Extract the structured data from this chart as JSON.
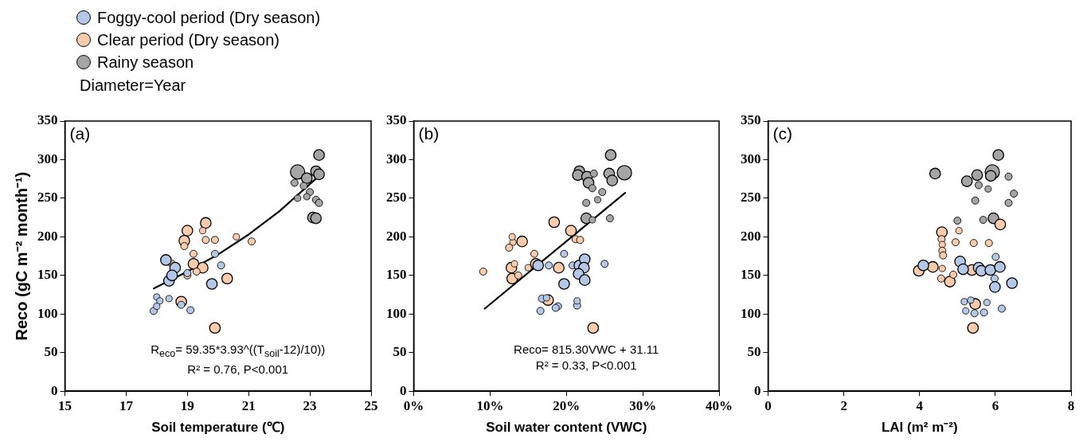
{
  "chart_data": [
    {
      "type": "bubble",
      "ylabel": "Reco (gC m⁻² month⁻¹)",
      "xlabel": "Soil temperature (℃)",
      "legend": "top left",
      "legend_title": "Diameter=Year",
      "xlim": [
        15,
        25
      ],
      "xticks": [
        15,
        17,
        19,
        21,
        23,
        25
      ],
      "ylim": [
        0,
        350
      ],
      "yticks": [
        0,
        50,
        100,
        150,
        200,
        250,
        300,
        350
      ],
      "annotations": [
        "(a)",
        "R$_{eco}$= 59.35*3.93^((T$_{soil}$-12)/10))",
        "R² = 0.76, P<0.001"
      ],
      "series": [
        {
          "name": "Foggy-cool period (Dry season)",
          "color": "#b4c7e7",
          "x": [
            18.3,
            18.6,
            18.4,
            18.5,
            19.0,
            19.9,
            20.1,
            19.8,
            18.0,
            18.1,
            18.4,
            18.8,
            19.1,
            17.9,
            18.0
          ],
          "values": [
            170,
            160,
            143,
            150,
            153,
            178,
            163,
            139,
            122,
            117,
            120,
            112,
            105,
            104,
            110
          ],
          "sizes": [
            0.55,
            0.55,
            0.55,
            0.55,
            0.25,
            0.25,
            0.25,
            0.55,
            0.2,
            0.2,
            0.2,
            0.25,
            0.25,
            0.25,
            0.2
          ]
        },
        {
          "name": "Clear period (Dry season)",
          "color": "#f8cbad",
          "x": [
            19.6,
            19.0,
            19.5,
            18.9,
            19.6,
            19.9,
            20.6,
            21.1,
            18.9,
            19.2,
            19.2,
            19.5,
            19.3,
            18.5,
            20.3,
            18.8,
            19.9,
            19.0
          ],
          "values": [
            218,
            208,
            208,
            195,
            196,
            196,
            200,
            194,
            188,
            178,
            165,
            160,
            155,
            165,
            146,
            116,
            82,
            150
          ],
          "sizes": [
            0.55,
            0.55,
            0.2,
            0.55,
            0.25,
            0.25,
            0.2,
            0.25,
            0.25,
            0.25,
            0.55,
            0.55,
            0.25,
            0.25,
            0.55,
            0.55,
            0.55,
            0.25
          ]
        },
        {
          "name": "Rainy season",
          "color": "#a5a5a5",
          "x": [
            23.3,
            22.6,
            23.2,
            23.3,
            22.9,
            22.5,
            22.8,
            23.0,
            22.9,
            23.2,
            23.3,
            23.1,
            23.2,
            22.6
          ],
          "values": [
            306,
            284,
            285,
            281,
            276,
            270,
            266,
            258,
            252,
            248,
            244,
            225,
            224,
            250
          ],
          "sizes": [
            0.55,
            1,
            0.55,
            0.55,
            0.55,
            0.25,
            0.25,
            0.25,
            0.2,
            0.25,
            0.25,
            0.55,
            0.55,
            0.2
          ]
        },
        {
          "type": "line",
          "color": "#000000",
          "x": [
            17.9,
            19,
            20,
            21,
            22,
            23.3
          ],
          "values": [
            133,
            155,
            177,
            203,
            233,
            279
          ]
        }
      ]
    },
    {
      "type": "bubble",
      "xlabel": "Soil water content (VWC)",
      "xlim": [
        0,
        40
      ],
      "xticks": [
        {
          "value": 0,
          "label": "0%"
        },
        {
          "value": 10,
          "label": "10%"
        },
        {
          "value": 20,
          "label": "20%"
        },
        {
          "value": 30,
          "label": "30%"
        },
        {
          "value": 40,
          "label": "40%"
        }
      ],
      "ylim": [
        0,
        350
      ],
      "yticks": [
        0,
        50,
        100,
        150,
        200,
        250,
        300,
        350
      ],
      "annotations": [
        "(b)",
        "Reco= 815.30VWC + 31.11",
        "R² = 0.33, P<0.001"
      ],
      "series": [
        {
          "color": "#b4c7e7",
          "x": [
            16.3,
            17.7,
            19.7,
            20.8,
            21.7,
            22.4,
            25.0,
            22.3,
            21.6,
            22.4,
            19.7,
            16.8,
            17.4,
            18.9,
            16.6,
            18.6,
            21.4,
            21.4
          ],
          "values": [
            163,
            163,
            178,
            163,
            163,
            171,
            165,
            160,
            152,
            144,
            139,
            120,
            121,
            110,
            104,
            108,
            111,
            117
          ],
          "sizes": [
            0.55,
            0.25,
            0.25,
            0.25,
            0.55,
            0.55,
            0.25,
            0.55,
            0.55,
            0.55,
            0.55,
            0.25,
            0.2,
            0.25,
            0.25,
            0.25,
            0.25,
            0.2
          ]
        },
        {
          "color": "#f8cbad",
          "x": [
            9.1,
            12.9,
            13.7,
            12.8,
            13.2,
            15.0,
            16.0,
            15.8,
            13.0,
            12.5,
            14.2,
            12.9,
            18.4,
            20.6,
            21.2,
            21.8,
            19.0,
            23.5,
            17.6
          ],
          "values": [
            155,
            146,
            150,
            160,
            165,
            160,
            165,
            178,
            193,
            186,
            194,
            200,
            219,
            208,
            197,
            196,
            160,
            82,
            118
          ],
          "sizes": [
            0.25,
            0.55,
            0.25,
            0.55,
            0.2,
            0.2,
            0.55,
            0.25,
            0.2,
            0.25,
            0.55,
            0.2,
            0.55,
            0.55,
            0.25,
            0.25,
            0.55,
            0.55,
            0.55
          ]
        },
        {
          "color": "#a5a5a5",
          "x": [
            25.8,
            21.7,
            21.5,
            22.7,
            23.6,
            25.6,
            27.6,
            26.0,
            22.9,
            23.4,
            24.7,
            24.1,
            22.6,
            25.7,
            22.6,
            23.4
          ],
          "values": [
            306,
            285,
            280,
            278,
            282,
            282,
            283,
            273,
            270,
            263,
            258,
            248,
            244,
            224,
            224,
            222
          ],
          "sizes": [
            0.55,
            0.55,
            0.55,
            0.55,
            0.25,
            0.55,
            1,
            0.55,
            0.55,
            0.25,
            0.25,
            0.2,
            0.25,
            0.25,
            0.55,
            0.2
          ]
        },
        {
          "type": "line",
          "color": "#000000",
          "x": [
            9.3,
            27.7
          ],
          "values": [
            107,
            257
          ]
        }
      ]
    },
    {
      "type": "bubble",
      "xlabel": "LAI (m² m⁻²)",
      "xlim": [
        0,
        8
      ],
      "xticks": [
        0,
        2,
        4,
        6,
        8
      ],
      "ylim": [
        0,
        350
      ],
      "yticks": [
        0,
        50,
        100,
        150,
        200,
        250,
        300,
        350
      ],
      "annotations": [
        "(c)"
      ],
      "series": [
        {
          "color": "#b4c7e7",
          "x": [
            4.1,
            5.07,
            5.15,
            5.56,
            5.63,
            5.87,
            6.12,
            6.01,
            5.98,
            5.99,
            6.44,
            5.18,
            5.35,
            5.78,
            6.17,
            5.22,
            5.45,
            5.7
          ],
          "values": [
            163,
            168,
            158,
            160,
            156,
            157,
            161,
            174,
            146,
            135,
            140,
            116,
            118,
            115,
            107,
            104,
            101,
            102
          ],
          "sizes": [
            0.55,
            0.55,
            0.55,
            0.55,
            0.55,
            0.55,
            0.55,
            0.25,
            0.25,
            0.55,
            0.55,
            0.2,
            0.2,
            0.2,
            0.25,
            0.2,
            0.25,
            0.25
          ]
        },
        {
          "color": "#f8cbad",
          "x": [
            6.13,
            4.59,
            5.04,
            4.58,
            4.95,
            5.43,
            5.83,
            4.6,
            4.6,
            4.62,
            3.98,
            4.35,
            4.6,
            4.57,
            4.8,
            4.89,
            5.38,
            5.47,
            5.41
          ],
          "values": [
            216,
            206,
            208,
            197,
            193,
            192,
            192,
            190,
            182,
            176,
            156,
            161,
            159,
            146,
            142,
            151,
            157,
            113,
            82
          ],
          "sizes": [
            0.55,
            0.55,
            0.2,
            0.25,
            0.25,
            0.25,
            0.25,
            0.2,
            0.25,
            0.25,
            0.55,
            0.55,
            0.2,
            0.25,
            0.55,
            0.25,
            0.55,
            0.55,
            0.55
          ]
        },
        {
          "color": "#a5a5a5",
          "x": [
            6.08,
            4.41,
            5.52,
            5.92,
            5.88,
            5.25,
            6.35,
            5.56,
            5.81,
            6.49,
            6.35,
            5.47,
            5.0,
            5.68,
            5.95
          ],
          "values": [
            306,
            282,
            280,
            284,
            279,
            272,
            278,
            267,
            262,
            256,
            244,
            247,
            221,
            222,
            224
          ],
          "sizes": [
            0.55,
            0.55,
            0.55,
            1,
            0.55,
            0.55,
            0.25,
            0.25,
            0.2,
            0.25,
            0.25,
            0.25,
            0.25,
            0.25,
            0.55
          ]
        }
      ]
    }
  ]
}
